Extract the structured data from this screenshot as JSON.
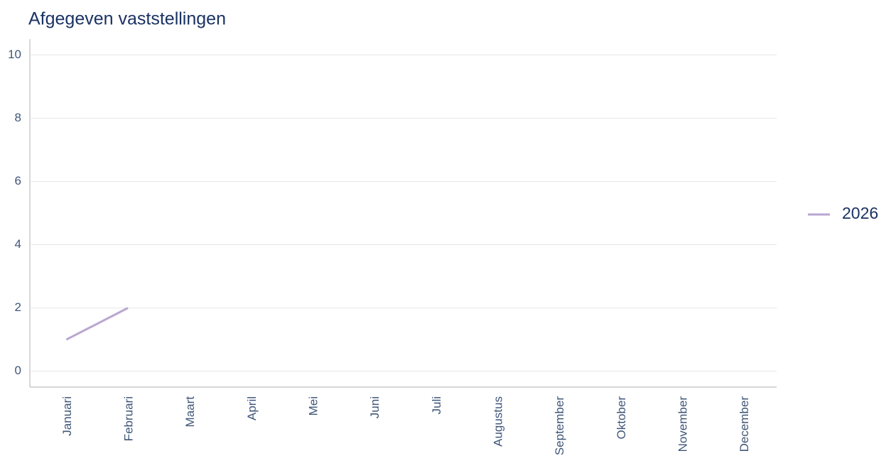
{
  "chart_data": {
    "type": "line",
    "title": "Afgegeven vaststellingen",
    "categories": [
      "Januari",
      "Februari",
      "Maart",
      "April",
      "Mei",
      "Juni",
      "Juli",
      "Augustus",
      "September",
      "Oktober",
      "November",
      "December"
    ],
    "series": [
      {
        "name": "2026",
        "color": "#b9a6d1",
        "values": [
          1,
          2,
          null,
          null,
          null,
          null,
          null,
          null,
          null,
          null,
          null,
          null
        ]
      }
    ],
    "ylim": [
      -0.5,
      10.5
    ],
    "yticks": [
      0,
      2,
      4,
      6,
      8,
      10
    ],
    "grid": true,
    "legend": "right"
  }
}
